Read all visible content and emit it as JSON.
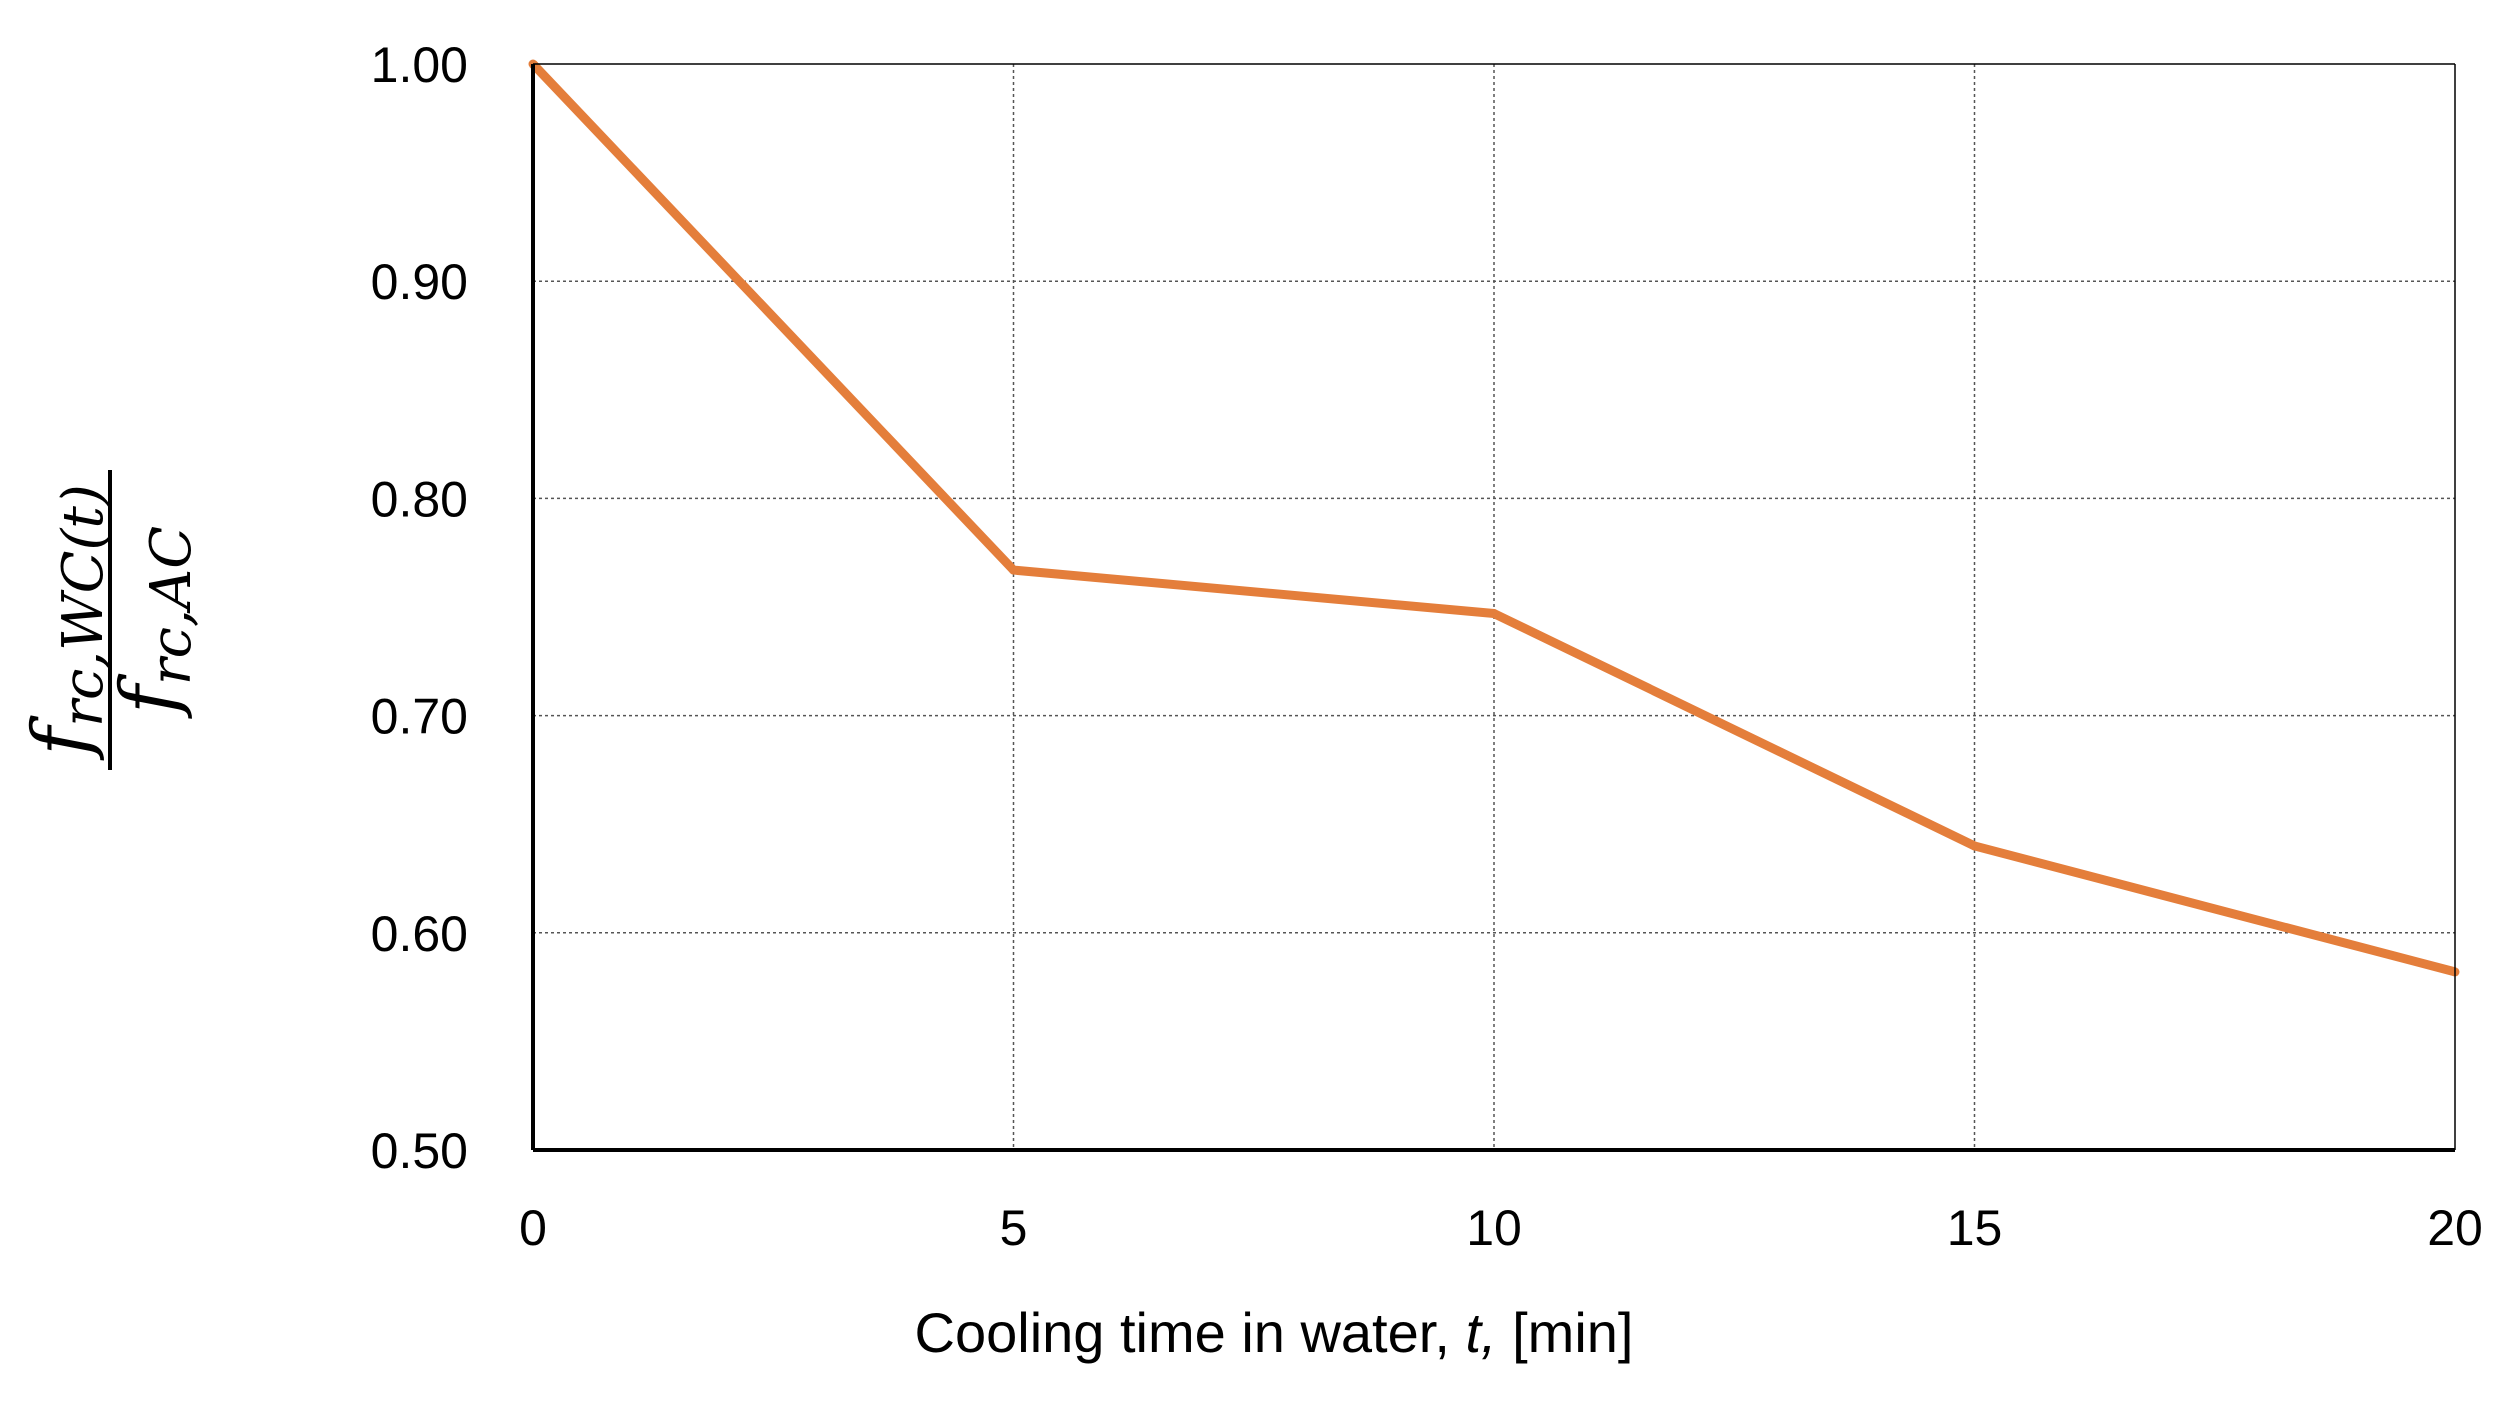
{
  "chart_data": {
    "type": "line",
    "title": "",
    "xlabel": {
      "prefix": "Cooling time in water, ",
      "italic": "t,",
      "suffix": " [min]"
    },
    "ylabel": {
      "numerator_base": "f",
      "numerator_sub": "rc,WC(t)",
      "denominator_base": "f",
      "denominator_sub": "rc,AC"
    },
    "xlim": [
      0,
      20
    ],
    "ylim": [
      0.5,
      1.0
    ],
    "x_ticks": [
      "0",
      "5",
      "10",
      "15",
      "20"
    ],
    "y_ticks": [
      "0.50",
      "0.60",
      "0.70",
      "0.80",
      "0.90",
      "1.00"
    ],
    "grid": true,
    "legend": "none",
    "series": [
      {
        "name": "f_rc,WC(t) / f_rc,AC",
        "color": "#E47E3B",
        "x": [
          0,
          5,
          10,
          15,
          20
        ],
        "y": [
          1.0,
          0.767,
          0.747,
          0.64,
          0.582
        ]
      }
    ]
  }
}
